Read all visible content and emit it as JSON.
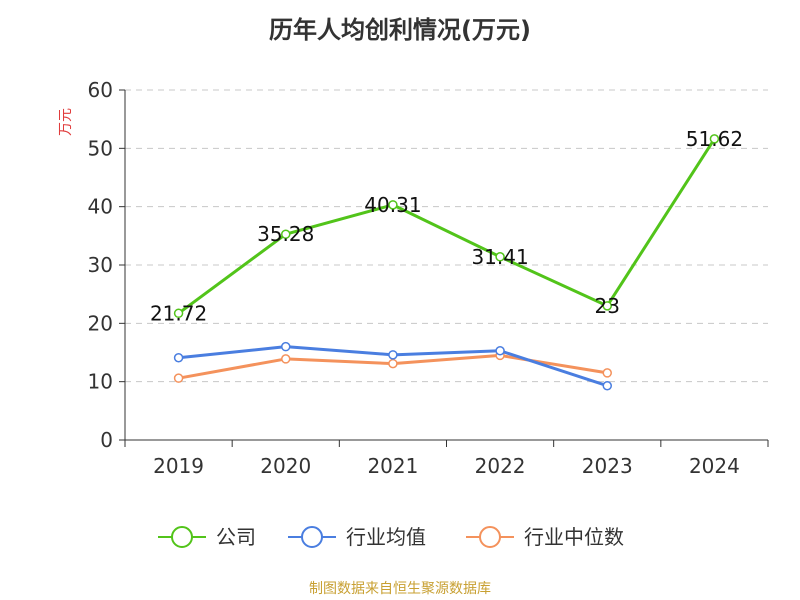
{
  "colors": {
    "company": "#52c41a",
    "industry_avg": "#4a7ee0",
    "industry_median": "#f4925c",
    "ylabel": "#e03c3c",
    "footer": "#c8a032",
    "axis": "#333333",
    "grid": "#c8c8c8",
    "title": "#333333"
  },
  "chart_data": {
    "type": "line",
    "title": "历年人均创利情况(万元)",
    "xlabel": "",
    "ylabel": "万元",
    "categories": [
      "2019",
      "2020",
      "2021",
      "2022",
      "2023",
      "2024"
    ],
    "ylim": [
      0,
      60
    ],
    "yticks": [
      0,
      10,
      20,
      30,
      40,
      50,
      60
    ],
    "grid": true,
    "legend_position": "bottom",
    "series": [
      {
        "key": "company",
        "name": "公司",
        "values": [
          21.72,
          35.28,
          40.31,
          31.41,
          23,
          51.62
        ],
        "labels": [
          "21.72",
          "35.28",
          "40.31",
          "31.41",
          "23",
          "51.62"
        ]
      },
      {
        "key": "industry_avg",
        "name": "行业均值",
        "values": [
          14.1,
          16.0,
          14.6,
          15.3,
          9.3,
          null
        ]
      },
      {
        "key": "industry_median",
        "name": "行业中位数",
        "values": [
          10.6,
          13.9,
          13.1,
          14.5,
          11.5,
          null
        ]
      }
    ]
  },
  "footer": "制图数据来自恒生聚源数据库"
}
